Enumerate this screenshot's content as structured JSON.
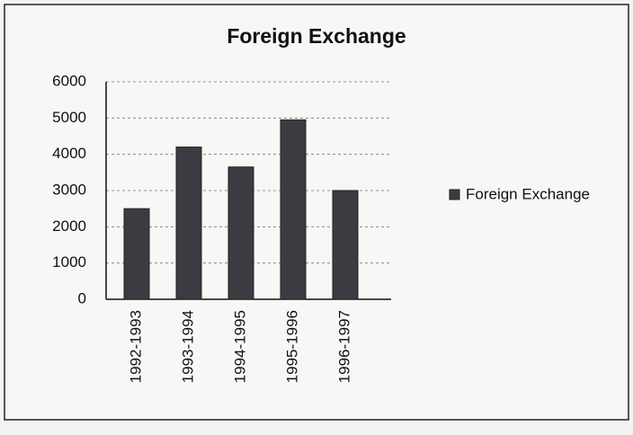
{
  "chart_data": {
    "type": "bar",
    "title": "Foreign Exchange",
    "categories": [
      "1992-1993",
      "1993-1994",
      "1994-1995",
      "1995-1996",
      "1996-1997"
    ],
    "series": [
      {
        "name": "Foreign Exchange",
        "color": "#3b3b42",
        "values": [
          2500,
          4200,
          3650,
          4950,
          3000
        ]
      }
    ],
    "ylim": [
      0,
      6000
    ],
    "yticks": [
      0,
      1000,
      2000,
      3000,
      4000,
      5000,
      6000
    ],
    "grid": true,
    "legend": "right"
  }
}
